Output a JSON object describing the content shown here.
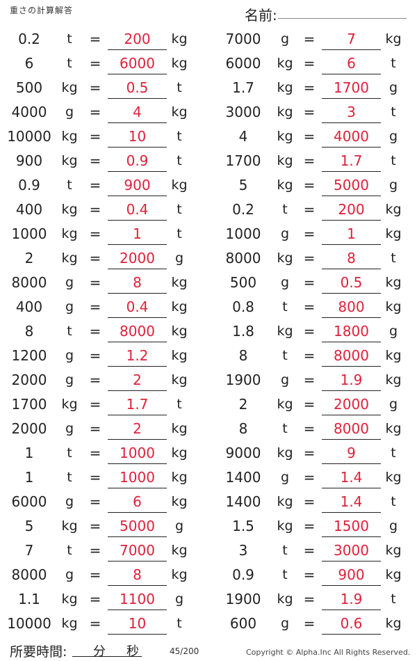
{
  "header": {
    "title": "重さの計算解答",
    "name_label": "名前:"
  },
  "left": [
    [
      "0.2",
      "t",
      "200",
      "kg"
    ],
    [
      "6",
      "t",
      "6000",
      "kg"
    ],
    [
      "500",
      "kg",
      "0.5",
      "t"
    ],
    [
      "4000",
      "g",
      "4",
      "kg"
    ],
    [
      "10000",
      "kg",
      "10",
      "t"
    ],
    [
      "900",
      "kg",
      "0.9",
      "t"
    ],
    [
      "0.9",
      "t",
      "900",
      "kg"
    ],
    [
      "400",
      "kg",
      "0.4",
      "t"
    ],
    [
      "1000",
      "kg",
      "1",
      "t"
    ],
    [
      "2",
      "kg",
      "2000",
      "g"
    ],
    [
      "8000",
      "g",
      "8",
      "kg"
    ],
    [
      "400",
      "g",
      "0.4",
      "kg"
    ],
    [
      "8",
      "t",
      "8000",
      "kg"
    ],
    [
      "1200",
      "g",
      "1.2",
      "kg"
    ],
    [
      "2000",
      "g",
      "2",
      "kg"
    ],
    [
      "1700",
      "kg",
      "1.7",
      "t"
    ],
    [
      "2000",
      "g",
      "2",
      "kg"
    ],
    [
      "1",
      "t",
      "1000",
      "kg"
    ],
    [
      "1",
      "t",
      "1000",
      "kg"
    ],
    [
      "6000",
      "g",
      "6",
      "kg"
    ],
    [
      "5",
      "kg",
      "5000",
      "g"
    ],
    [
      "7",
      "t",
      "7000",
      "kg"
    ],
    [
      "8000",
      "g",
      "8",
      "kg"
    ],
    [
      "1.1",
      "kg",
      "1100",
      "g"
    ],
    [
      "10000",
      "kg",
      "10",
      "t"
    ]
  ],
  "right": [
    [
      "7000",
      "g",
      "7",
      "kg"
    ],
    [
      "6000",
      "kg",
      "6",
      "t"
    ],
    [
      "1.7",
      "kg",
      "1700",
      "g"
    ],
    [
      "3000",
      "kg",
      "3",
      "t"
    ],
    [
      "4",
      "kg",
      "4000",
      "g"
    ],
    [
      "1700",
      "kg",
      "1.7",
      "t"
    ],
    [
      "5",
      "kg",
      "5000",
      "g"
    ],
    [
      "0.2",
      "t",
      "200",
      "kg"
    ],
    [
      "1000",
      "g",
      "1",
      "kg"
    ],
    [
      "8000",
      "kg",
      "8",
      "t"
    ],
    [
      "500",
      "g",
      "0.5",
      "kg"
    ],
    [
      "0.8",
      "t",
      "800",
      "kg"
    ],
    [
      "1.8",
      "kg",
      "1800",
      "g"
    ],
    [
      "8",
      "t",
      "8000",
      "kg"
    ],
    [
      "1900",
      "g",
      "1.9",
      "kg"
    ],
    [
      "2",
      "kg",
      "2000",
      "g"
    ],
    [
      "8",
      "t",
      "8000",
      "kg"
    ],
    [
      "9000",
      "kg",
      "9",
      "t"
    ],
    [
      "1400",
      "g",
      "1.4",
      "kg"
    ],
    [
      "1400",
      "kg",
      "1.4",
      "t"
    ],
    [
      "1.5",
      "kg",
      "1500",
      "g"
    ],
    [
      "3",
      "t",
      "3000",
      "kg"
    ],
    [
      "0.9",
      "t",
      "900",
      "kg"
    ],
    [
      "1900",
      "kg",
      "1.9",
      "t"
    ],
    [
      "600",
      "g",
      "0.6",
      "kg"
    ]
  ],
  "equals": "=",
  "answer_color": "#e0203a",
  "footer": {
    "time_label": "所要時間:",
    "minutes": "分",
    "seconds": "秒",
    "page": "45/200",
    "copyright": "Copyright © Alpha.Inc All Rights Reserved."
  }
}
